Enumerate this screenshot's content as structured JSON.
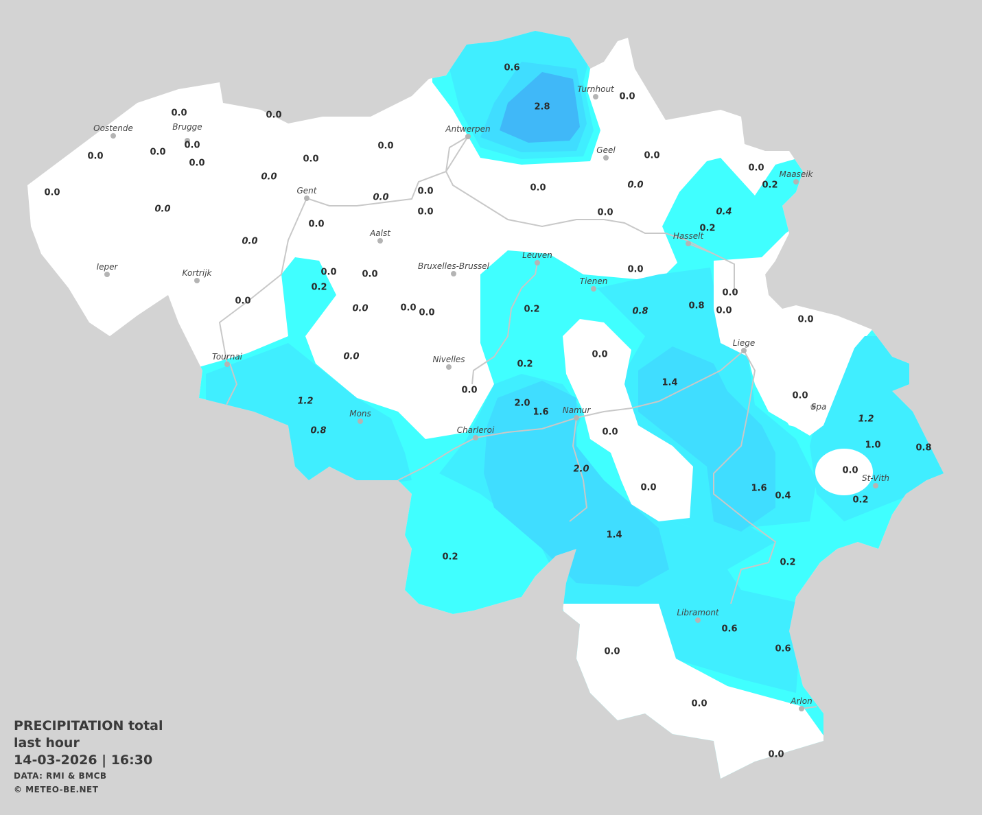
{
  "legend": {
    "title": "PRECIPITATION total",
    "subtitle": "last hour",
    "datetime": "14-03-2026  |  16:30",
    "source": "DATA: RMI & BMCB",
    "copyright": "© METEO-BE.NET"
  },
  "units": "mm",
  "colors": {
    "background": "#d3d3d3",
    "land_dry": "#ffffff",
    "level_0_2": "#40ffff",
    "level_0_6": "#40eeff",
    "level_1_2": "#40ddff",
    "level_2_8": "#40b8f8",
    "rivers": "#c8c8c8"
  },
  "cities": [
    "Oostende",
    "Brugge",
    "Antwerpen",
    "Turnhout",
    "Geel",
    "Maaseik",
    "Gent",
    "Aalst",
    "Hasselt",
    "Ieper",
    "Kortrijk",
    "Bruxelles-Brussel",
    "Leuven",
    "Tienen",
    "Liege",
    "Tournai",
    "Nivelles",
    "Spa",
    "Mons",
    "Namur",
    "Charleroi",
    "St-Vith",
    "Libramont",
    "Arlon"
  ],
  "values": [
    "0.6",
    "2.8",
    "0.0",
    "0.0",
    "0.0",
    "0.0",
    "0.0",
    "0.0",
    "0.0",
    "0.0",
    "0.0",
    "0.0",
    "0.0",
    "0.0",
    "0.0",
    "0.0",
    "0.0",
    "0.0",
    "0.0",
    "0.0",
    "0.0",
    "0.0",
    "0.0",
    "0.2",
    "0.4",
    "0.2",
    "0.0",
    "0.0",
    "0.2",
    "0.0",
    "0.0",
    "0.0",
    "0.0",
    "0.0",
    "0.2",
    "0.0",
    "0.8",
    "0.8",
    "0.0",
    "0.0",
    "0.0",
    "0.0",
    "0.2",
    "0.0",
    "0.0",
    "1.4",
    "0.0",
    "1.2",
    "2.0",
    "1.6",
    "1.2",
    "0.8",
    "0.0",
    "1.0",
    "0.8",
    "2.0",
    "0.0",
    "0.0",
    "1.6",
    "0.4",
    "0.2",
    "1.4",
    "0.2",
    "0.2",
    "0.6",
    "0.6",
    "0.0",
    "0.0",
    "0.0"
  ]
}
